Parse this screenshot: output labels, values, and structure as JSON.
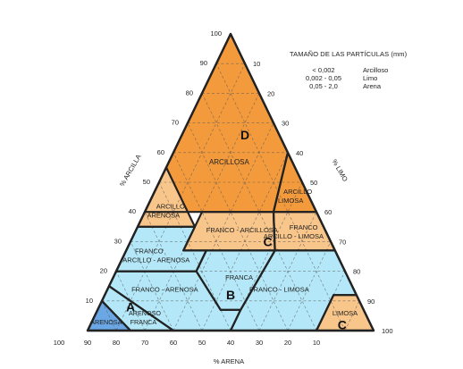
{
  "legend": {
    "title": "TAMAÑO DE LAS PARTÍCULAS (mm)",
    "rows": [
      {
        "size": "< 0,002",
        "name": "Arcilloso"
      },
      {
        "size": "0,002 - 0,05",
        "name": "Limo"
      },
      {
        "size": "0,05 - 2,0",
        "name": "Arena"
      }
    ]
  },
  "axes": {
    "clay_label": "% ARCILLA",
    "silt_label": "% LIMO",
    "sand_label": "% ARENA",
    "clay_ticks": [
      "10",
      "20",
      "30",
      "40",
      "50",
      "60",
      "70",
      "80",
      "90",
      "100"
    ],
    "silt_ticks": [
      "10",
      "20",
      "30",
      "40",
      "50",
      "60",
      "70",
      "80",
      "90",
      "100"
    ],
    "sand_ticks": [
      "100",
      "90",
      "80",
      "70",
      "60",
      "50",
      "40",
      "30",
      "20",
      "10"
    ]
  },
  "colors": {
    "orange": "#f39a3d",
    "tan": "#f8c58a",
    "blue": "#b4e8f8",
    "dark_blue": "#6aa7e4",
    "border": "#222222"
  },
  "regions": [
    {
      "id": "arcillosa",
      "fill": "orange",
      "label": [
        "ARCILLOSA"
      ],
      "letter": "D",
      "points": [
        [
          40,
          0
        ],
        [
          40,
          45
        ],
        [
          60,
          40
        ],
        [
          100,
          0
        ]
      ]
    },
    {
      "id": "arcillo-limosa",
      "fill": "orange",
      "label": [
        "ARCILLO",
        "LIMOSA"
      ],
      "points": [
        [
          40,
          45
        ],
        [
          40,
          60
        ],
        [
          60,
          40
        ]
      ]
    },
    {
      "id": "arcillo-arenosa",
      "fill": "tan",
      "label": [
        "ARCILLO",
        "ARENOSA"
      ],
      "points": [
        [
          35,
          0
        ],
        [
          35,
          20
        ],
        [
          55,
          0
        ]
      ]
    },
    {
      "id": "franco-arcillosa",
      "fill": "tan",
      "label": [
        "FRANCO - ARCILLOSA"
      ],
      "letter": "C",
      "points": [
        [
          40,
          45
        ],
        [
          40,
          20
        ],
        [
          27,
          20
        ],
        [
          27,
          52
        ]
      ]
    },
    {
      "id": "franco-arcillo-limosa",
      "fill": "tan",
      "label": [
        "FRANCO",
        "ARCILLO - LIMOSA"
      ],
      "points": [
        [
          40,
          60
        ],
        [
          40,
          45
        ],
        [
          27,
          52
        ],
        [
          27,
          73
        ]
      ]
    },
    {
      "id": "limosa",
      "fill": "tan",
      "label": [
        "LIMOSA"
      ],
      "letter": "C",
      "points": [
        [
          12,
          80
        ],
        [
          12,
          88
        ],
        [
          0,
          100
        ],
        [
          0,
          80
        ]
      ]
    },
    {
      "id": "franco-arcillo-arenosa",
      "fill": "blue",
      "label": [
        "FRANCO",
        "ARCILLO - ARENOSA"
      ],
      "points": [
        [
          20,
          0
        ],
        [
          35,
          0
        ],
        [
          35,
          20
        ],
        [
          27,
          20
        ],
        [
          27,
          28
        ],
        [
          20,
          28
        ]
      ]
    },
    {
      "id": "franca",
      "fill": "blue",
      "label": [
        "FRANCA"
      ],
      "letter": "B",
      "points": [
        [
          27,
          28
        ],
        [
          27,
          52
        ],
        [
          7,
          50
        ],
        [
          7,
          43
        ],
        [
          20,
          28
        ]
      ]
    },
    {
      "id": "franco-limosa",
      "fill": "blue",
      "label": [
        "FRANCO - LIMOSA"
      ],
      "points": [
        [
          27,
          52
        ],
        [
          27,
          73
        ],
        [
          12,
          88
        ],
        [
          12,
          80
        ],
        [
          0,
          80
        ],
        [
          0,
          50
        ],
        [
          7,
          50
        ]
      ]
    },
    {
      "id": "franco-arenosa",
      "fill": "blue",
      "label": [
        "FRANCO - ARENOSA"
      ],
      "points": [
        [
          20,
          0
        ],
        [
          20,
          28
        ],
        [
          7,
          43
        ],
        [
          7,
          50
        ],
        [
          0,
          50
        ],
        [
          0,
          30
        ],
        [
          15,
          0
        ]
      ]
    },
    {
      "id": "areno-franca",
      "fill": "blue",
      "label": [
        "ARENOSO",
        "FRANCA"
      ],
      "letter": "A",
      "points": [
        [
          15,
          0
        ],
        [
          0,
          30
        ],
        [
          0,
          15
        ],
        [
          10,
          0
        ]
      ]
    },
    {
      "id": "arenosa",
      "fill": "dark_blue",
      "label": [
        "ARENOSA"
      ],
      "points": [
        [
          10,
          0
        ],
        [
          0,
          15
        ],
        [
          0,
          0
        ]
      ]
    }
  ],
  "region_labels": [
    {
      "text": "ARCILLOSA",
      "at": [
        57,
        21
      ],
      "size": 8
    },
    {
      "text": "ARCILLO",
      "at": [
        47,
        50
      ],
      "size": 7.5
    },
    {
      "text": "LIMOSA",
      "at": [
        44,
        49
      ],
      "size": 7.5
    },
    {
      "text": "ARCILLO",
      "at": [
        42,
        8
      ],
      "size": 7.5
    },
    {
      "text": "ARENOSA",
      "at": [
        39,
        7
      ],
      "size": 7.5
    },
    {
      "text": "FRANCO - ARCILLOSA",
      "at": [
        34,
        37
      ],
      "size": 7.5
    },
    {
      "text": "FRANCO",
      "at": [
        35,
        58
      ],
      "size": 7.5
    },
    {
      "text": "ARCILLO - LIMOSA",
      "at": [
        32,
        56
      ],
      "size": 7.5
    },
    {
      "text": "FRANCO",
      "at": [
        27,
        8
      ],
      "size": 7.5
    },
    {
      "text": "ARCILLO - ARENOSA",
      "at": [
        24,
        12
      ],
      "size": 7.5
    },
    {
      "text": "FRANCA",
      "at": [
        18,
        44
      ],
      "size": 7.5
    },
    {
      "text": "FRANCO - ARENOSA",
      "at": [
        14,
        20
      ],
      "size": 7.5
    },
    {
      "text": "FRANCO - LIMOSA",
      "at": [
        14,
        60
      ],
      "size": 7.5
    },
    {
      "text": "LIMOSA",
      "at": [
        6,
        87
      ],
      "size": 7.5
    },
    {
      "text": "ARENOSO",
      "at": [
        6,
        17
      ],
      "size": 7.2
    },
    {
      "text": "FRANCA",
      "at": [
        3,
        18
      ],
      "size": 7.2
    },
    {
      "text": "ARENOSA",
      "at": [
        3,
        5
      ],
      "size": 7.2
    }
  ],
  "letters": [
    {
      "text": "D",
      "at": [
        66,
        22
      ]
    },
    {
      "text": "C",
      "at": [
        30,
        48
      ]
    },
    {
      "text": "B",
      "at": [
        12,
        44
      ]
    },
    {
      "text": "C",
      "at": [
        2,
        88
      ]
    },
    {
      "text": "A",
      "at": [
        8,
        11
      ]
    }
  ]
}
